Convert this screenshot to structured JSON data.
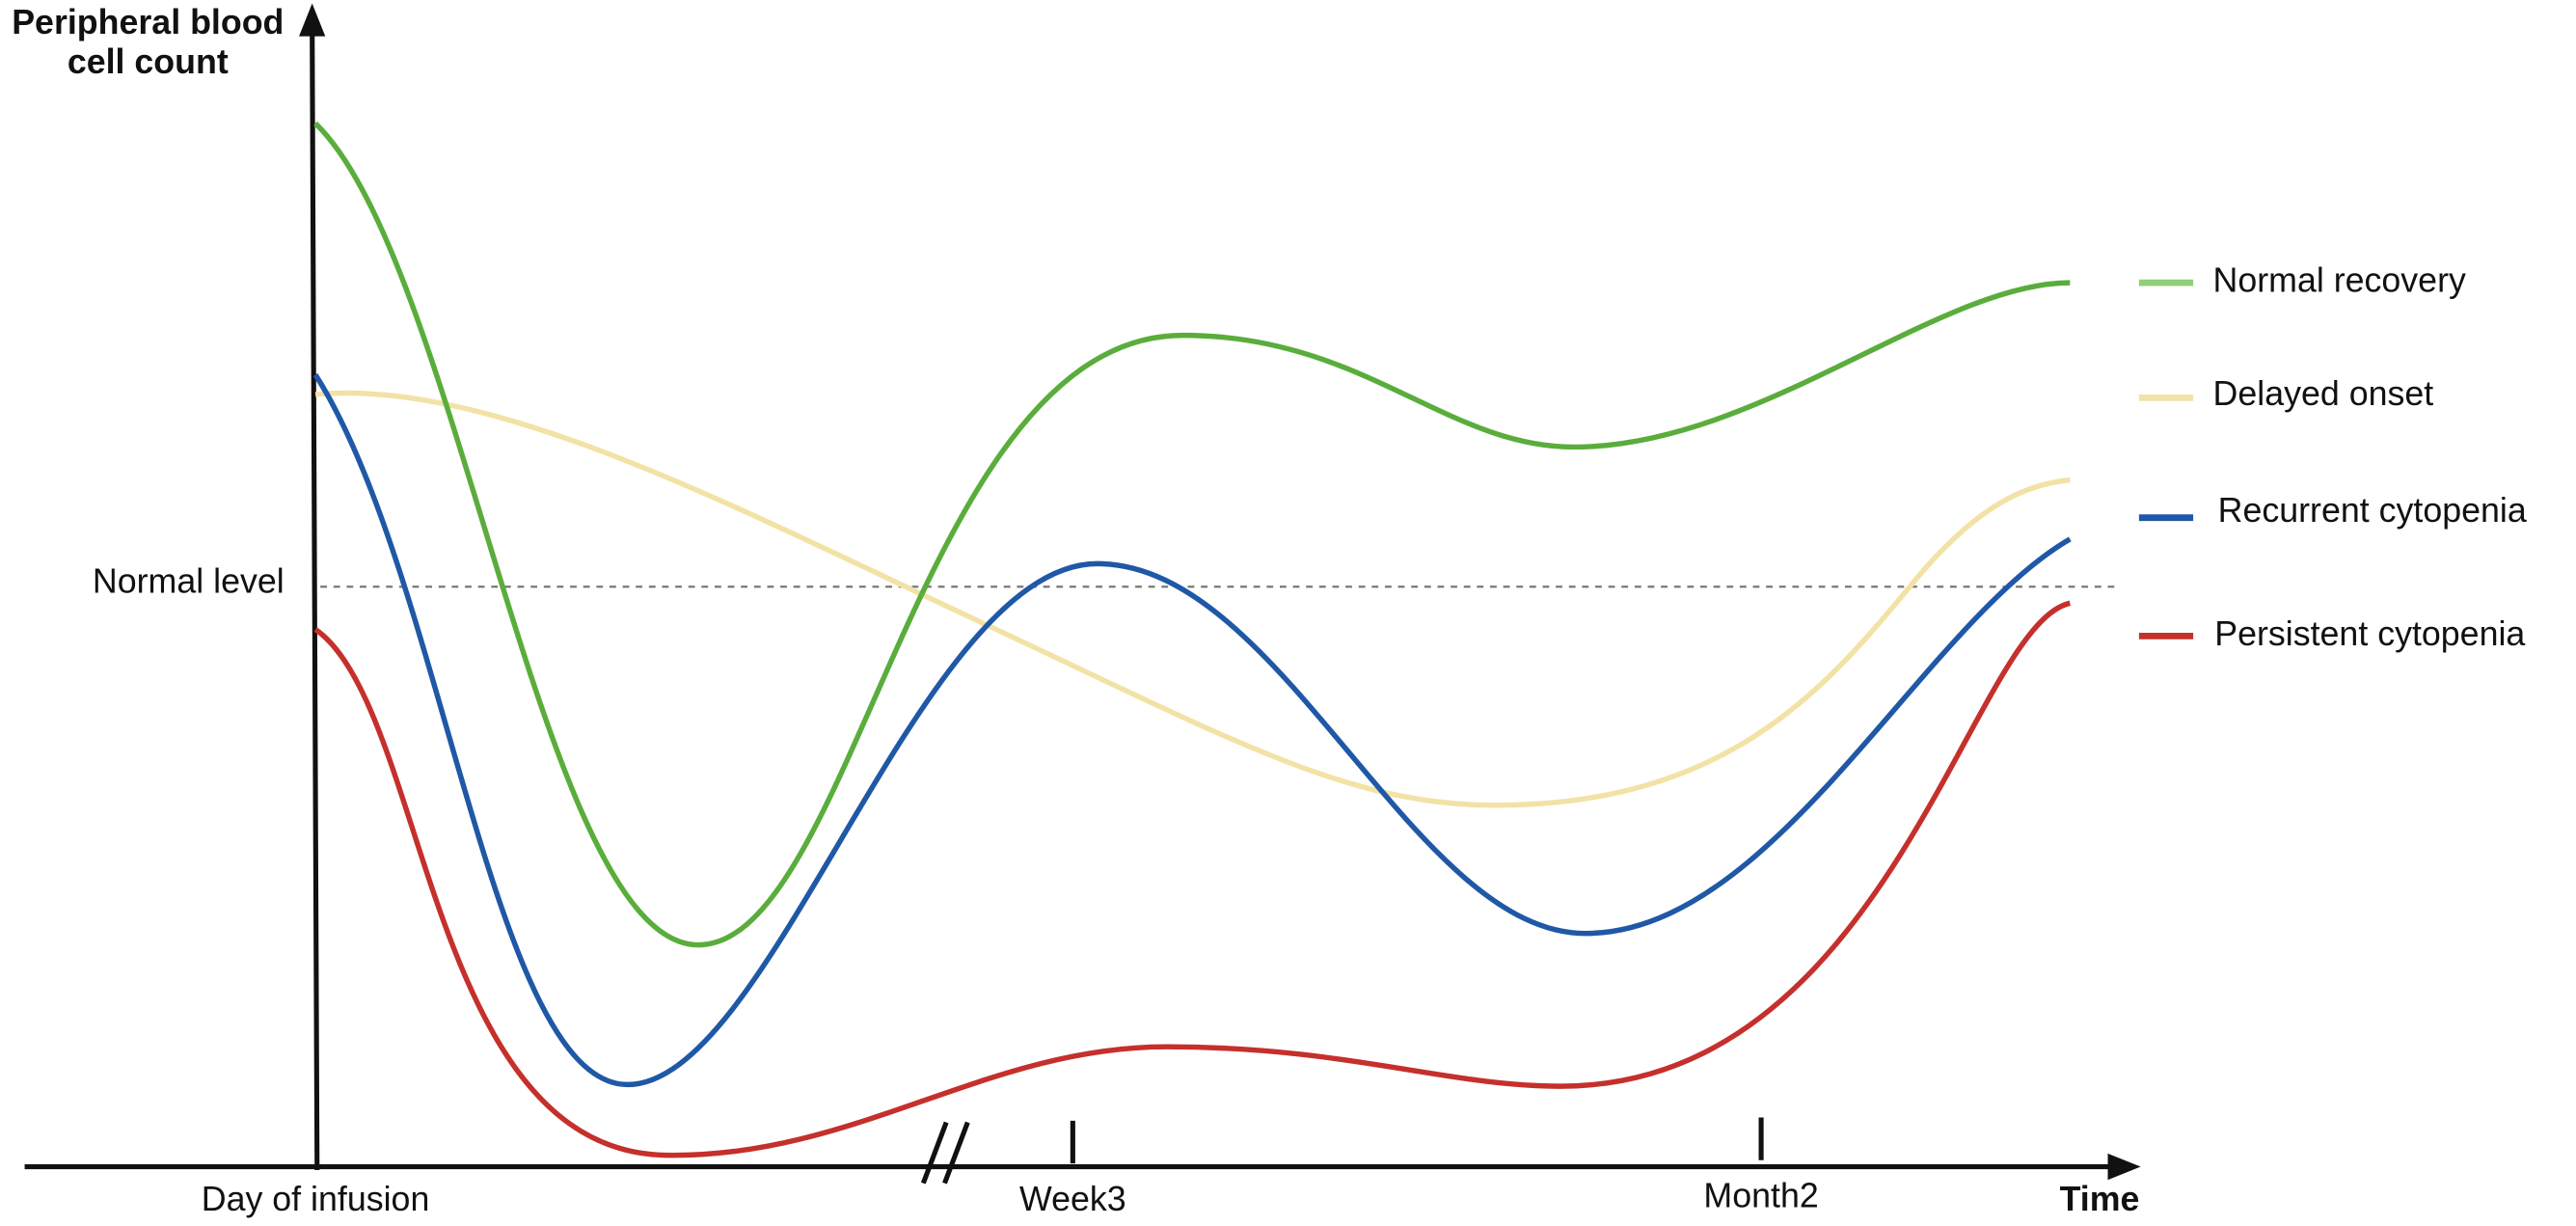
{
  "y_axis_label": [
    "Peripheral blood",
    "cell count"
  ],
  "x_axis_label": "Time",
  "x_labels": [
    "Day of infusion",
    "Week3",
    "Month2"
  ],
  "reference_label": "Normal level",
  "legend": [
    "Normal recovery",
    "Delayed onset",
    "Recurrent cytopenia",
    "Persistent cytopenia"
  ]
}
